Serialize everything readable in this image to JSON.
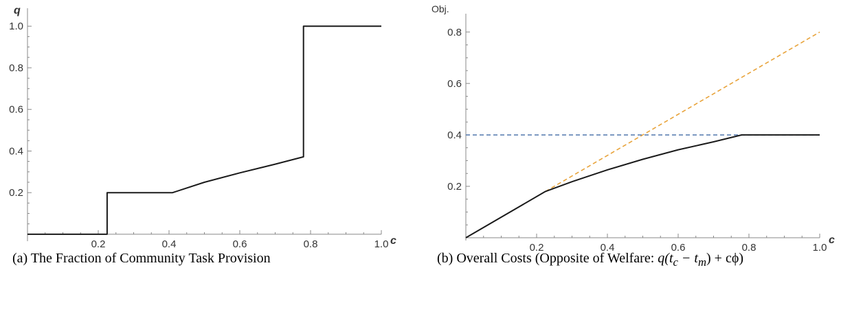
{
  "chart_data": [
    {
      "type": "line",
      "caption": "(a) The Fraction of Community Task Provision",
      "xlabel": "c",
      "ylabel": "q",
      "xlim": [
        0,
        1.0
      ],
      "ylim": [
        -0.02,
        1.06
      ],
      "xticks": [
        "0.2",
        "0.4",
        "0.6",
        "0.8",
        "1.0"
      ],
      "yticks": [
        "0.2",
        "0.4",
        "0.6",
        "0.8",
        "1.0"
      ],
      "grid": false,
      "series": [
        {
          "color": "#1a1a1a",
          "dash": "solid",
          "x": [
            0.0,
            0.225,
            0.225,
            0.41,
            0.5,
            0.6,
            0.7,
            0.78,
            0.78,
            1.0
          ],
          "y": [
            0.0,
            0.0,
            0.2,
            0.2,
            0.25,
            0.295,
            0.337,
            0.372,
            1.0,
            1.0
          ]
        }
      ]
    },
    {
      "type": "line",
      "caption_prefix": "(b) Overall Costs (Opposite of Welfare: ",
      "caption_math": "q(t",
      "caption_sub1": "c",
      "caption_mid": " − t",
      "caption_sub2": "m",
      "caption_end": ") + cϕ)",
      "xlabel": "c",
      "ylabel": "Obj.",
      "xlim": [
        0,
        1.0
      ],
      "ylim": [
        0,
        0.85
      ],
      "xticks": [
        "0.2",
        "0.4",
        "0.6",
        "0.8",
        "1.0"
      ],
      "yticks": [
        "0.2",
        "0.4",
        "0.6",
        "0.8"
      ],
      "grid": false,
      "series": [
        {
          "color": "#e8a33a",
          "dash": "dashed",
          "x": [
            0.225,
            1.0
          ],
          "y": [
            0.18,
            0.8
          ]
        },
        {
          "color": "#5d80b3",
          "dash": "dashed",
          "x": [
            0.0,
            1.0
          ],
          "y": [
            0.4,
            0.4
          ]
        },
        {
          "color": "#1a1a1a",
          "dash": "solid",
          "x": [
            0.0,
            0.225,
            0.3,
            0.4,
            0.5,
            0.6,
            0.7,
            0.78,
            1.0
          ],
          "y": [
            0.0,
            0.18,
            0.218,
            0.264,
            0.305,
            0.342,
            0.373,
            0.4,
            0.4
          ]
        }
      ]
    }
  ]
}
